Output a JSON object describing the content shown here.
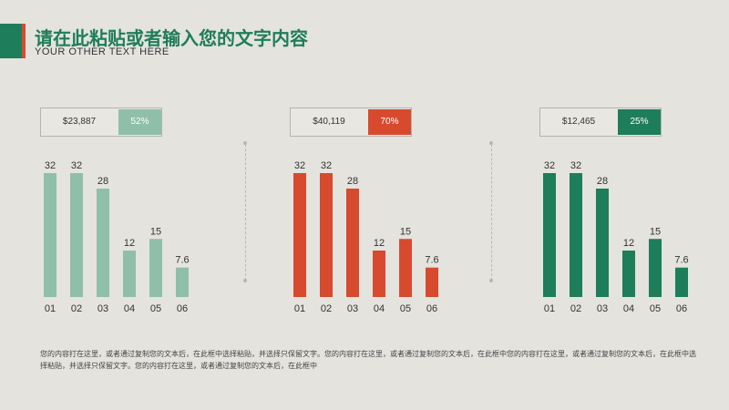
{
  "header": {
    "title": "请在此粘贴或者输入您的文字内容",
    "subtitle": "YOUR OTHER TEXT HERE"
  },
  "colors": {
    "accent_green": "#1e7d5a",
    "accent_red": "#d74a2e",
    "series": [
      "#8fbfa9",
      "#d74a2e",
      "#1e7d5a"
    ]
  },
  "panels": [
    {
      "amount": "$23,887",
      "percent_label": "52%",
      "percent": 52
    },
    {
      "amount": "$40,119",
      "percent_label": "70%",
      "percent": 70
    },
    {
      "amount": "$12,465",
      "percent_label": "25%",
      "percent": 25
    }
  ],
  "chart_data": [
    {
      "type": "bar",
      "categories": [
        "01",
        "02",
        "03",
        "04",
        "05",
        "06"
      ],
      "values": [
        32,
        32,
        28,
        12,
        15,
        7.6
      ],
      "value_labels": [
        "32",
        "32",
        "28",
        "12",
        "15",
        "7.6"
      ],
      "ylim": [
        0,
        32
      ]
    },
    {
      "type": "bar",
      "categories": [
        "01",
        "02",
        "03",
        "04",
        "05",
        "06"
      ],
      "values": [
        32,
        32,
        28,
        12,
        15,
        7.6
      ],
      "value_labels": [
        "32",
        "32",
        "28",
        "12",
        "15",
        "7.6"
      ],
      "ylim": [
        0,
        32
      ]
    },
    {
      "type": "bar",
      "categories": [
        "01",
        "02",
        "03",
        "04",
        "05",
        "06"
      ],
      "values": [
        32,
        32,
        28,
        12,
        15,
        7.6
      ],
      "value_labels": [
        "32",
        "32",
        "28",
        "12",
        "15",
        "7.6"
      ],
      "ylim": [
        0,
        32
      ]
    }
  ],
  "footer": {
    "text": "您的内容打在这里，或者通过复制您的文本后，在此框中选择粘贴，并选择只保留文字。您的内容打在这里，或者通过复制您的文本后，在此框中您的内容打在这里，或者通过复制您的文本后，在此框中选择粘贴，并选择只保留文字。您的内容打在这里，或者通过复制您的文本后，在此框中"
  }
}
